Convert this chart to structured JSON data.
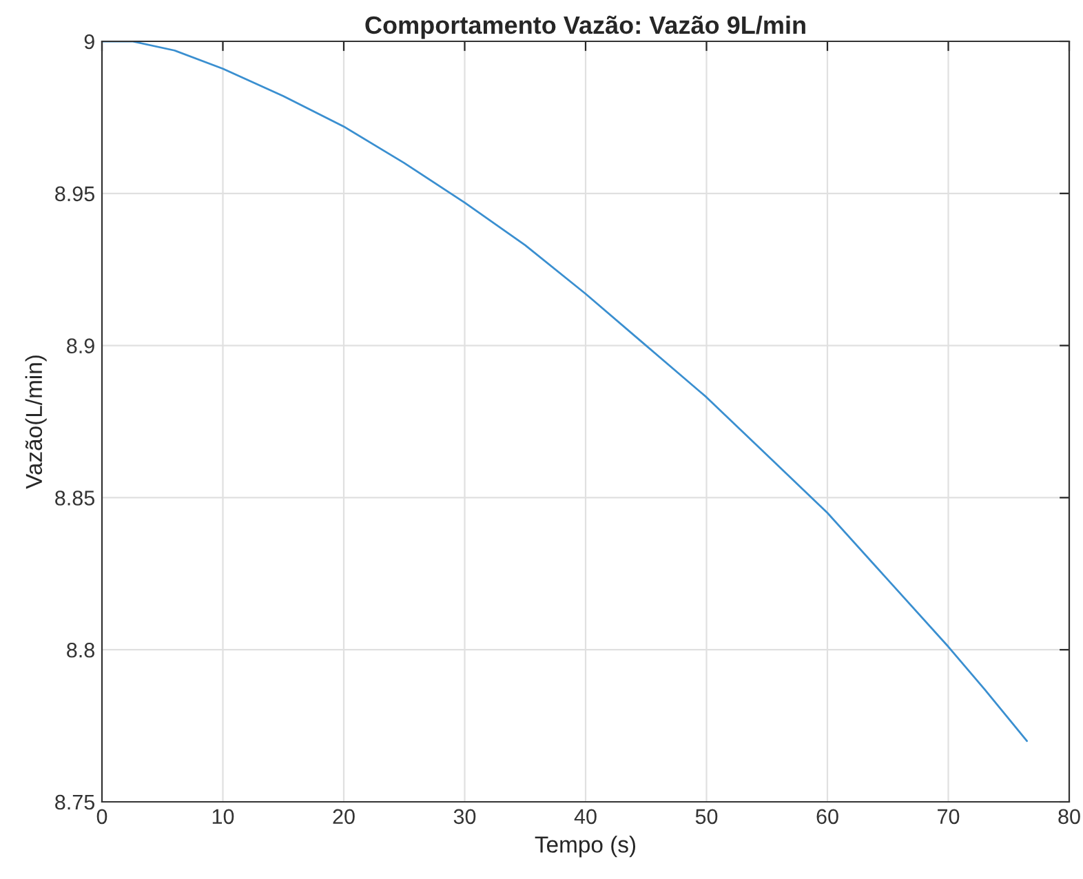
{
  "chart_data": {
    "type": "line",
    "title": "Comportamento Vazão: Vazão 9L/min",
    "xlabel": "Tempo (s)",
    "ylabel": "Vazão(L/min)",
    "series": [
      {
        "color": "#3a8fd0",
        "x": [
          0,
          2.5,
          6,
          10,
          15,
          20,
          25,
          30,
          35,
          40,
          45,
          50,
          55,
          60,
          65,
          70,
          73,
          76.5
        ],
        "values": [
          9.0,
          9.0,
          8.997,
          8.991,
          8.982,
          8.972,
          8.96,
          8.947,
          8.933,
          8.917,
          8.9,
          8.883,
          8.864,
          8.845,
          8.823,
          8.801,
          8.787,
          8.77
        ]
      }
    ],
    "xlim": [
      0,
      80
    ],
    "ylim": [
      8.75,
      9
    ],
    "xticks": [
      0,
      10,
      20,
      30,
      40,
      50,
      60,
      70,
      80
    ],
    "yticks": [
      8.75,
      8.8,
      8.85,
      8.9,
      8.95,
      9
    ],
    "grid": true
  }
}
